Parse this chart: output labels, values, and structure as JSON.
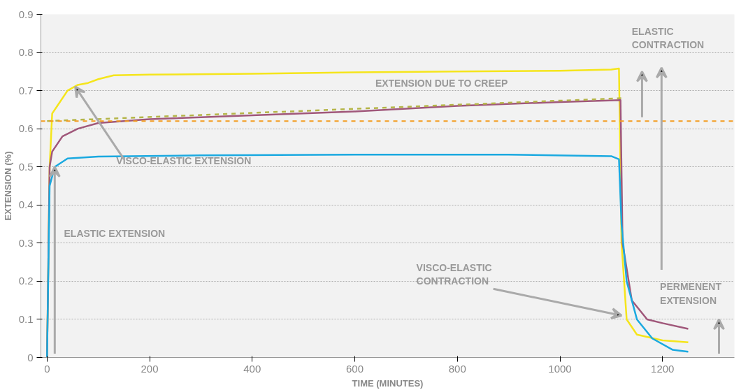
{
  "chart_data": {
    "type": "line",
    "xlabel": "TIME (MINUTES)",
    "ylabel": "EXTENSION (%)",
    "xlim": [
      -12,
      1340
    ],
    "ylim": [
      0,
      0.9
    ],
    "xticks": [
      0,
      200,
      400,
      600,
      800,
      1000,
      1200
    ],
    "yticks": [
      0,
      0.1,
      0.2,
      0.3,
      0.4,
      0.5,
      0.6,
      0.7,
      0.8,
      0.9
    ],
    "grid": "y",
    "marker": "none",
    "series": [
      {
        "color": "#f5e51b",
        "x": [
          0,
          5,
          10,
          20,
          40,
          60,
          80,
          100,
          130,
          200,
          400,
          600,
          800,
          1000,
          1100,
          1115,
          1120,
          1130,
          1150,
          1200,
          1250
        ],
        "values": [
          0,
          0.5,
          0.64,
          0.66,
          0.7,
          0.715,
          0.72,
          0.73,
          0.74,
          0.742,
          0.744,
          0.748,
          0.75,
          0.752,
          0.755,
          0.758,
          0.3,
          0.1,
          0.06,
          0.045,
          0.04
        ]
      },
      {
        "color": "#a0577a",
        "x": [
          0,
          5,
          10,
          30,
          60,
          100,
          200,
          400,
          600,
          800,
          1000,
          1118,
          1122,
          1140,
          1170,
          1200,
          1250
        ],
        "values": [
          0,
          0.5,
          0.54,
          0.58,
          0.6,
          0.615,
          0.625,
          0.635,
          0.645,
          0.66,
          0.67,
          0.675,
          0.3,
          0.15,
          0.1,
          0.09,
          0.075
        ]
      },
      {
        "color": "#1aa9e0",
        "x": [
          0,
          5,
          15,
          40,
          100,
          300,
          600,
          900,
          1100,
          1115,
          1120,
          1130,
          1150,
          1180,
          1220,
          1250
        ],
        "values": [
          0,
          0.45,
          0.5,
          0.522,
          0.527,
          0.53,
          0.532,
          0.532,
          0.528,
          0.52,
          0.35,
          0.2,
          0.1,
          0.05,
          0.02,
          0.015
        ]
      },
      {
        "color": "#b5b548",
        "line_style": "dashed",
        "x": [
          0,
          1120
        ],
        "values": [
          0.62,
          0.68
        ]
      }
    ],
    "ref_lines": [
      {
        "axis": "y",
        "value": 0.62,
        "color": "#f39c1f",
        "line_style": "dashed"
      }
    ],
    "annotations": [
      "ELASTIC EXTENSION",
      {
        "text": "VISCO-ELASTIC EXTENSION",
        "x": 55,
        "y": 0.71
      },
      "EXTENSION DUE TO CREEP",
      "ELASTIC\nCONTRACTION",
      "VISCO-ELASTIC\nCONTRACTION",
      "PERMENENT\nEXTENSION"
    ]
  }
}
